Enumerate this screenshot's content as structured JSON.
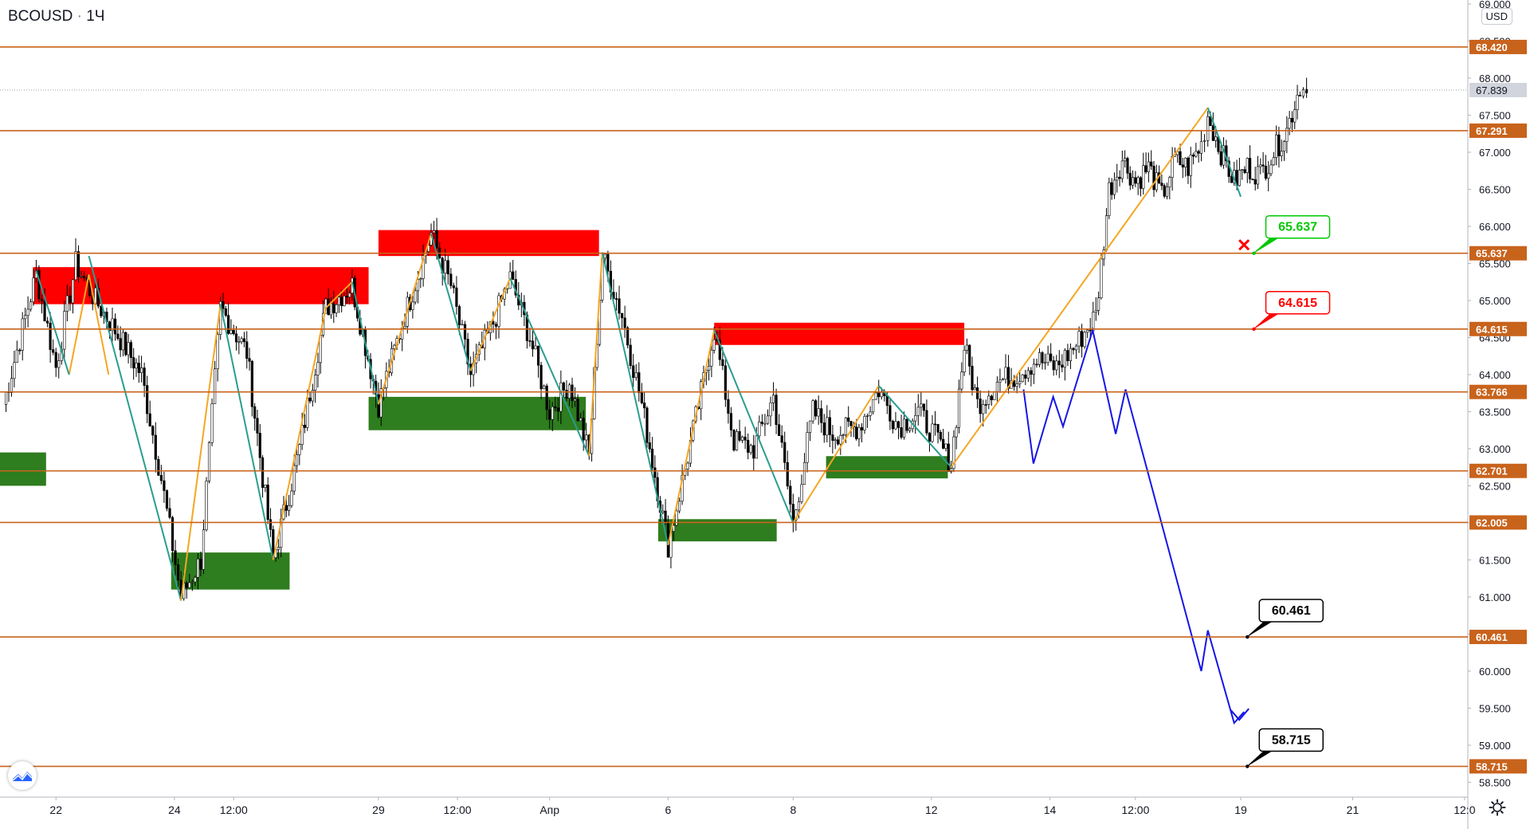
{
  "header": {
    "symbol": "BCOUSD",
    "separator": "·",
    "interval": "1Ч",
    "currency": "USD"
  },
  "chart_data": {
    "type": "candlestick",
    "title": "BCOUSD · 1Ч",
    "ylim": [
      58.3,
      69.0
    ],
    "y_ticks": [
      58.5,
      59.0,
      59.5,
      60.0,
      60.5,
      61.0,
      61.5,
      62.0,
      62.5,
      63.0,
      63.5,
      64.0,
      64.5,
      65.0,
      65.5,
      66.0,
      66.5,
      67.0,
      67.5,
      68.0,
      68.5,
      69.0
    ],
    "y_tick_labels": [
      "58.500",
      "59.000",
      "59.500",
      "60.000",
      "60.500",
      "61.000",
      "61.500",
      "62.000",
      "62.500",
      "63.000",
      "63.500",
      "64.000",
      "64.500",
      "65.000",
      "65.500",
      "66.000",
      "66.500",
      "67.000",
      "67.500",
      "68.000",
      "68.500",
      "69.000"
    ],
    "x_ticks": [
      {
        "label": "22",
        "t": 4
      },
      {
        "label": "24",
        "t": 22
      },
      {
        "label": "12:00",
        "t": 31
      },
      {
        "label": "29",
        "t": 53
      },
      {
        "label": "12:00",
        "t": 65
      },
      {
        "label": "Апр",
        "t": 79
      },
      {
        "label": "6",
        "t": 97
      },
      {
        "label": "8",
        "t": 116
      },
      {
        "label": "12",
        "t": 137
      },
      {
        "label": "14",
        "t": 155
      },
      {
        "label": "12:00",
        "t": 168
      },
      {
        "label": "19",
        "t": 184
      },
      {
        "label": "21",
        "t": 201
      },
      {
        "label": "12:0",
        "t": 218
      }
    ],
    "x_range": [
      -4.5,
      218.5
    ],
    "levels": [
      {
        "value": 68.42,
        "label": "68.420"
      },
      {
        "value": 67.291,
        "label": "67.291"
      },
      {
        "value": 65.637,
        "label": "65.637"
      },
      {
        "value": 64.615,
        "label": "64.615"
      },
      {
        "value": 63.766,
        "label": "63.766"
      },
      {
        "value": 62.701,
        "label": "62.701"
      },
      {
        "value": 62.005,
        "label": "62.005"
      },
      {
        "value": 60.461,
        "label": "60.461"
      },
      {
        "value": 58.715,
        "label": "58.715"
      }
    ],
    "last_price": {
      "value": 67.839,
      "label": "67.839"
    },
    "zones": [
      {
        "kind": "resistance",
        "t0": 0.5,
        "t1": 51.5,
        "y0": 64.95,
        "y1": 65.45
      },
      {
        "kind": "resistance",
        "t0": 53,
        "t1": 86.5,
        "y0": 65.6,
        "y1": 65.95
      },
      {
        "kind": "resistance",
        "t0": 104,
        "t1": 142,
        "y0": 64.4,
        "y1": 64.7
      },
      {
        "kind": "support",
        "t0": -4.5,
        "t1": 2.5,
        "y0": 62.5,
        "y1": 62.95
      },
      {
        "kind": "support",
        "t0": 21.5,
        "t1": 39.5,
        "y0": 61.1,
        "y1": 61.6
      },
      {
        "kind": "support",
        "t0": 51.5,
        "t1": 84.5,
        "y0": 63.25,
        "y1": 63.7
      },
      {
        "kind": "support",
        "t0": 95.5,
        "t1": 113.5,
        "y0": 61.75,
        "y1": 62.05
      },
      {
        "kind": "support",
        "t0": 121,
        "t1": 139.5,
        "y0": 62.6,
        "y1": 62.9
      }
    ],
    "wave_lines": [
      {
        "color": "#f5a623",
        "points": [
          [
            6,
            64.0
          ],
          [
            9,
            65.35
          ],
          [
            12,
            64.0
          ],
          [
            9,
            65.35
          ]
        ]
      },
      {
        "color": "#2a9d8f",
        "points": [
          [
            1,
            65.4
          ],
          [
            6,
            64.0
          ]
        ]
      },
      {
        "color": "#2a9d8f",
        "points": [
          [
            9,
            65.6
          ],
          [
            23,
            60.95
          ]
        ]
      },
      {
        "color": "#f5a623",
        "points": [
          [
            23,
            60.95
          ],
          [
            29,
            64.95
          ]
        ]
      },
      {
        "color": "#2a9d8f",
        "points": [
          [
            29,
            64.95
          ],
          [
            37,
            61.5
          ]
        ]
      },
      {
        "color": "#f5a623",
        "points": [
          [
            37,
            61.5
          ],
          [
            45,
            64.9
          ]
        ]
      },
      {
        "color": "#f5a623",
        "points": [
          [
            45,
            64.9
          ],
          [
            49,
            65.25
          ]
        ]
      },
      {
        "color": "#2a9d8f",
        "points": [
          [
            49,
            65.25
          ],
          [
            53,
            63.6
          ]
        ]
      },
      {
        "color": "#f5a623",
        "points": [
          [
            53,
            63.6
          ],
          [
            61,
            65.9
          ]
        ]
      },
      {
        "color": "#2a9d8f",
        "points": [
          [
            61,
            65.9
          ],
          [
            67,
            64.05
          ]
        ]
      },
      {
        "color": "#f5a623",
        "points": [
          [
            67,
            64.05
          ],
          [
            73,
            65.3
          ]
        ]
      },
      {
        "color": "#2a9d8f",
        "points": [
          [
            73,
            65.3
          ],
          [
            85,
            62.9
          ]
        ]
      },
      {
        "color": "#f5a623",
        "points": [
          [
            85,
            62.9
          ],
          [
            87,
            65.65
          ]
        ]
      },
      {
        "color": "#2a9d8f",
        "points": [
          [
            87,
            65.65
          ],
          [
            97,
            61.7
          ]
        ]
      },
      {
        "color": "#f5a623",
        "points": [
          [
            97,
            61.7
          ],
          [
            104,
            64.6
          ]
        ]
      },
      {
        "color": "#2a9d8f",
        "points": [
          [
            104,
            64.6
          ],
          [
            116,
            62.0
          ]
        ]
      },
      {
        "color": "#f5a623",
        "points": [
          [
            116,
            62.0
          ],
          [
            129,
            63.85
          ]
        ]
      },
      {
        "color": "#2a9d8f",
        "points": [
          [
            129,
            63.85
          ],
          [
            140,
            62.75
          ]
        ]
      },
      {
        "color": "#f5a623",
        "points": [
          [
            140,
            62.75
          ],
          [
            179,
            67.6
          ]
        ]
      },
      {
        "color": "#2a9d8f",
        "points": [
          [
            179,
            67.6
          ],
          [
            184,
            66.4
          ]
        ]
      }
    ],
    "forecast_path": [
      [
        151,
        63.8
      ],
      [
        152.5,
        62.8
      ],
      [
        155.5,
        63.7
      ],
      [
        157,
        63.3
      ],
      [
        161.5,
        64.6
      ],
      [
        165,
        63.2
      ],
      [
        166.5,
        63.8
      ],
      [
        178,
        60.0
      ],
      [
        179,
        60.55
      ],
      [
        183,
        59.3
      ],
      [
        184.5,
        59.45
      ]
    ],
    "annotations": [
      {
        "text": "65.637",
        "t": 186,
        "y": 65.637,
        "color": "#00c800"
      },
      {
        "text": "64.615",
        "t": 186,
        "y": 64.615,
        "color": "#ff0000"
      },
      {
        "text": "60.461",
        "t": 185,
        "y": 60.461,
        "color": "#000000"
      },
      {
        "text": "58.715",
        "t": 185,
        "y": 58.715,
        "color": "#000000"
      }
    ],
    "cross_marker": {
      "t": 184.5,
      "y": 65.75
    },
    "anchors": [
      [
        -4,
        63.6
      ],
      [
        1,
        65.35
      ],
      [
        4,
        64.1
      ],
      [
        7,
        65.5
      ],
      [
        10,
        65.0
      ],
      [
        13,
        64.6
      ],
      [
        17,
        64.0
      ],
      [
        20,
        62.6
      ],
      [
        23,
        61.0
      ],
      [
        26,
        61.5
      ],
      [
        29,
        64.9
      ],
      [
        33,
        64.3
      ],
      [
        37,
        61.5
      ],
      [
        41,
        63.0
      ],
      [
        45,
        64.9
      ],
      [
        49,
        65.2
      ],
      [
        53,
        63.6
      ],
      [
        57,
        64.8
      ],
      [
        61,
        65.9
      ],
      [
        64,
        65.2
      ],
      [
        67,
        64.0
      ],
      [
        70,
        64.6
      ],
      [
        73,
        65.3
      ],
      [
        76,
        64.5
      ],
      [
        79,
        63.5
      ],
      [
        82,
        63.9
      ],
      [
        85,
        62.9
      ],
      [
        87,
        65.6
      ],
      [
        90,
        64.8
      ],
      [
        93,
        63.6
      ],
      [
        97,
        61.7
      ],
      [
        100,
        62.9
      ],
      [
        104,
        64.6
      ],
      [
        107,
        63.1
      ],
      [
        110,
        63.0
      ],
      [
        113,
        63.7
      ],
      [
        116,
        62.0
      ],
      [
        119,
        63.5
      ],
      [
        122,
        63.2
      ],
      [
        126,
        63.3
      ],
      [
        129,
        63.8
      ],
      [
        132,
        63.3
      ],
      [
        135,
        63.5
      ],
      [
        138,
        63.1
      ],
      [
        140,
        62.8
      ],
      [
        142,
        64.4
      ],
      [
        144,
        63.6
      ],
      [
        147,
        63.9
      ],
      [
        150,
        64.0
      ],
      [
        153,
        64.2
      ],
      [
        156,
        64.1
      ],
      [
        159,
        64.4
      ],
      [
        162,
        64.8
      ],
      [
        164,
        66.5
      ],
      [
        166,
        66.9
      ],
      [
        168,
        66.6
      ],
      [
        170,
        66.8
      ],
      [
        172,
        66.4
      ],
      [
        174,
        66.9
      ],
      [
        176,
        66.8
      ],
      [
        178,
        67.1
      ],
      [
        179,
        67.5
      ],
      [
        181,
        67.0
      ],
      [
        183,
        66.6
      ],
      [
        185,
        66.8
      ],
      [
        187,
        66.7
      ],
      [
        189,
        67.0
      ],
      [
        191,
        67.3
      ],
      [
        193,
        67.9
      ],
      [
        194,
        67.8
      ]
    ]
  }
}
